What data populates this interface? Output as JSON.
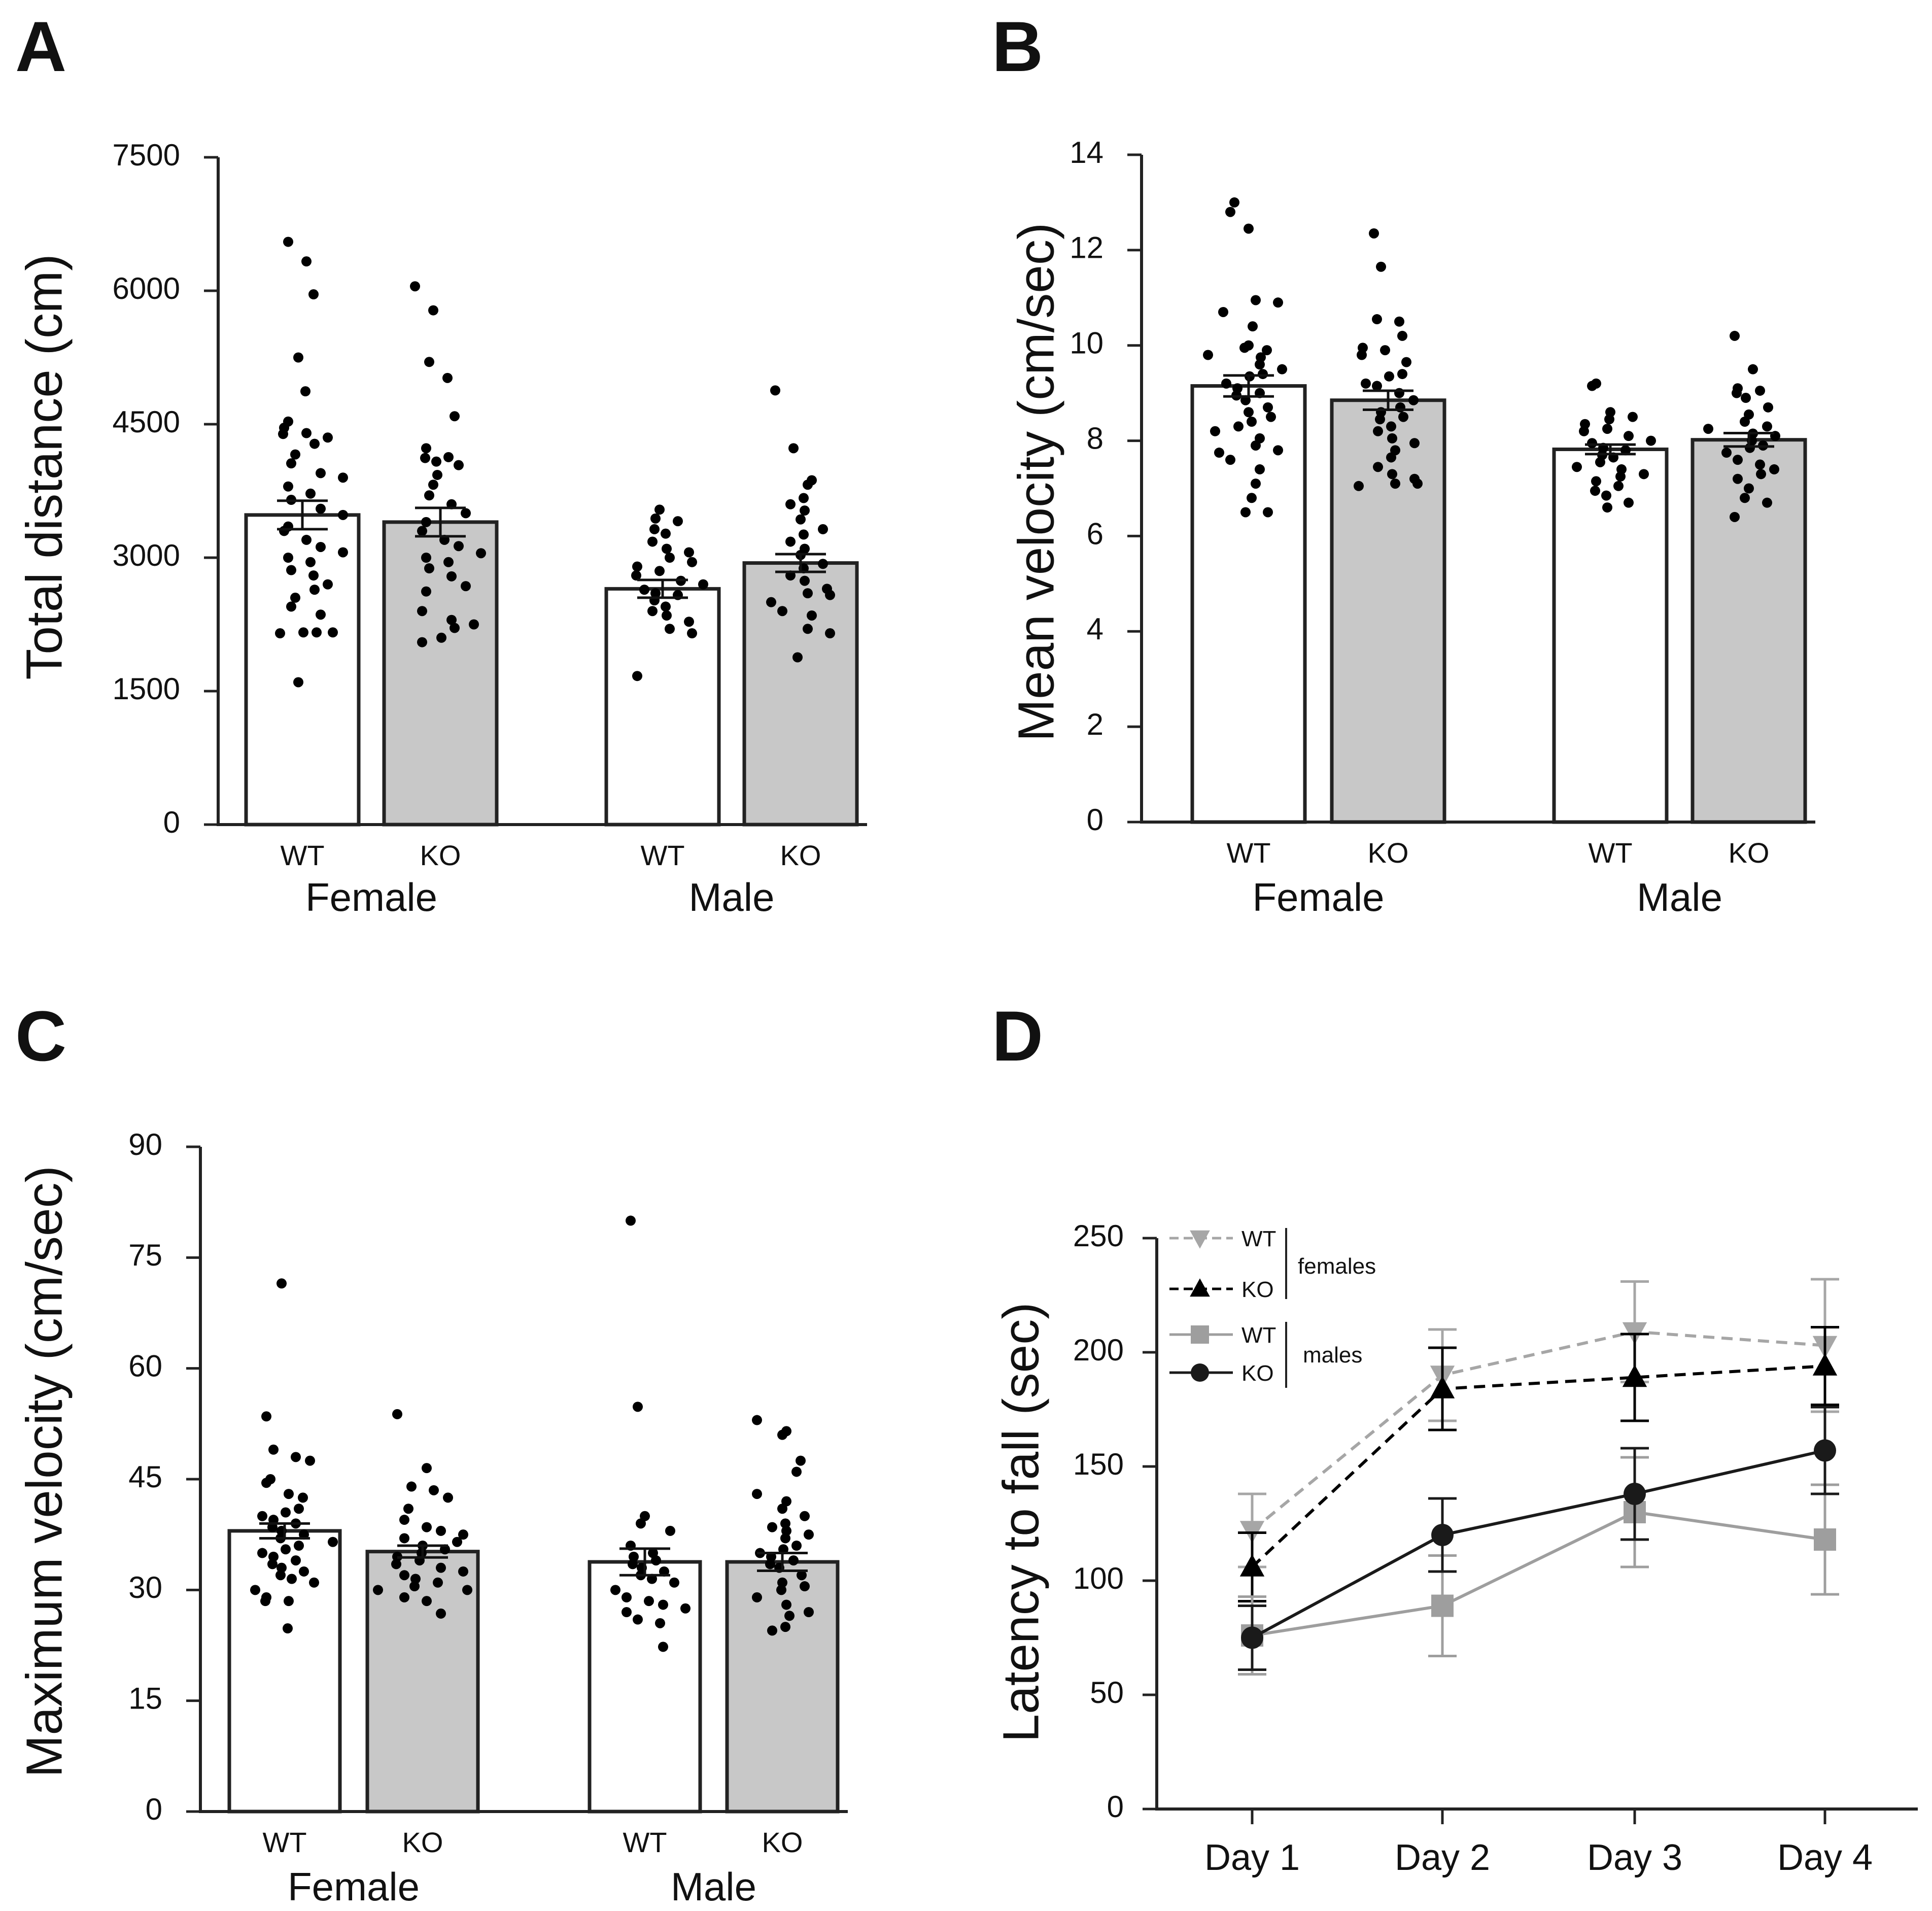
{
  "panels": {
    "a": "A",
    "b": "B",
    "c": "C",
    "d": "D"
  },
  "colors": {
    "wt_bar": "#ffffff",
    "ko_bar": "#c8c8c8",
    "dot": "#000000",
    "wt_female": "#a6a6a6",
    "ko_female": "#000000",
    "wt_male": "#9e9e9e",
    "ko_male": "#1a1a1a"
  },
  "chart_data": [
    {
      "panel": "A",
      "type": "bar",
      "ylabel": "Total distance (cm)",
      "ylim": [
        0,
        7500
      ],
      "yticks": [
        0,
        1500,
        3000,
        4500,
        6000,
        7500
      ],
      "groups": [
        "Female",
        "Male"
      ],
      "categories": [
        "WT",
        "KO",
        "WT",
        "KO"
      ],
      "bars": [
        {
          "group": "Female",
          "genotype": "WT",
          "mean": 3480,
          "sem": 160,
          "points": [
            6550,
            6330,
            5960,
            5250,
            4870,
            4530,
            4460,
            4400,
            4390,
            4350,
            4280,
            4160,
            4060,
            3950,
            3900,
            3800,
            3720,
            3650,
            3550,
            3480,
            3350,
            3300,
            3200,
            3120,
            3060,
            3000,
            2950,
            2860,
            2800,
            2700,
            2640,
            2550,
            2450,
            2360,
            2160,
            2160,
            2150,
            2160,
            1600
          ]
        },
        {
          "group": "Female",
          "genotype": "KO",
          "mean": 3400,
          "sem": 160,
          "points": [
            6050,
            5780,
            5200,
            5020,
            4590,
            4230,
            4130,
            4120,
            4080,
            4040,
            3930,
            3820,
            3700,
            3600,
            3500,
            3400,
            3300,
            3200,
            3130,
            3050,
            3000,
            2950,
            2880,
            2790,
            2680,
            2620,
            2400,
            2300,
            2250,
            2210,
            2100,
            2050
          ]
        },
        {
          "group": "Male",
          "genotype": "WT",
          "mean": 2650,
          "sem": 100,
          "points": [
            3540,
            3440,
            3410,
            3320,
            3270,
            3180,
            3100,
            3060,
            3000,
            2950,
            2900,
            2850,
            2800,
            2740,
            2700,
            2640,
            2600,
            2580,
            2520,
            2450,
            2400,
            2350,
            2280,
            2200,
            2150,
            1670
          ]
        },
        {
          "group": "Male",
          "genotype": "KO",
          "mean": 2940,
          "sem": 100,
          "points": [
            4880,
            4230,
            3870,
            3820,
            3670,
            3600,
            3530,
            3430,
            3320,
            3260,
            3180,
            3100,
            3030,
            2930,
            2880,
            2800,
            2740,
            2650,
            2600,
            2580,
            2500,
            2400,
            2350,
            2200,
            2150,
            1880
          ]
        }
      ]
    },
    {
      "panel": "B",
      "type": "bar",
      "ylabel": "Mean velocity (cm/sec)",
      "ylim": [
        0,
        14
      ],
      "yticks": [
        0,
        2,
        4,
        6,
        8,
        10,
        12,
        14
      ],
      "groups": [
        "Female",
        "Male"
      ],
      "categories": [
        "WT",
        "KO",
        "WT",
        "KO"
      ],
      "bars": [
        {
          "group": "Female",
          "genotype": "WT",
          "mean": 9.15,
          "sem": 0.22,
          "points": [
            13.0,
            12.8,
            12.45,
            10.95,
            10.9,
            10.7,
            10.4,
            10.0,
            9.95,
            9.9,
            9.8,
            9.75,
            9.6,
            9.5,
            9.4,
            9.35,
            9.2,
            9.1,
            9.0,
            8.95,
            8.85,
            8.7,
            8.6,
            8.5,
            8.4,
            8.3,
            8.2,
            8.05,
            7.9,
            7.8,
            7.75,
            7.6,
            7.4,
            7.1,
            6.8,
            6.5,
            6.5
          ]
        },
        {
          "group": "Female",
          "genotype": "KO",
          "mean": 8.85,
          "sem": 0.2,
          "points": [
            12.35,
            11.65,
            10.55,
            10.5,
            10.2,
            9.95,
            9.9,
            9.8,
            9.65,
            9.4,
            9.35,
            9.2,
            9.15,
            9.0,
            8.85,
            8.7,
            8.6,
            8.5,
            8.45,
            8.3,
            8.2,
            8.05,
            7.95,
            7.8,
            7.65,
            7.45,
            7.3,
            7.2,
            7.1,
            7.1,
            7.05
          ]
        },
        {
          "group": "Male",
          "genotype": "WT",
          "mean": 7.82,
          "sem": 0.1,
          "points": [
            9.2,
            9.15,
            8.6,
            8.5,
            8.45,
            8.35,
            8.25,
            8.2,
            8.1,
            8.0,
            7.95,
            7.85,
            7.8,
            7.7,
            7.65,
            7.55,
            7.45,
            7.4,
            7.3,
            7.25,
            7.15,
            7.05,
            6.95,
            6.85,
            6.7,
            6.6
          ]
        },
        {
          "group": "Male",
          "genotype": "KO",
          "mean": 8.02,
          "sem": 0.14,
          "points": [
            10.2,
            9.5,
            9.1,
            9.05,
            9.0,
            8.9,
            8.7,
            8.55,
            8.4,
            8.3,
            8.25,
            8.15,
            8.1,
            8.0,
            7.9,
            7.85,
            7.75,
            7.6,
            7.5,
            7.4,
            7.3,
            7.2,
            7.0,
            6.8,
            6.7,
            6.4
          ]
        }
      ]
    },
    {
      "panel": "C",
      "type": "bar",
      "ylabel": "Maximum velocity (cm/sec)",
      "ylim": [
        0,
        90
      ],
      "yticks": [
        0,
        15,
        30,
        45,
        60,
        75,
        90
      ],
      "groups": [
        "Female",
        "Male"
      ],
      "categories": [
        "WT",
        "KO",
        "WT",
        "KO"
      ],
      "bars": [
        {
          "group": "Female",
          "genotype": "WT",
          "mean": 38.0,
          "sem": 1.0,
          "points": [
            71.5,
            53.5,
            49.0,
            48.0,
            47.5,
            45.0,
            44.5,
            43.0,
            42.5,
            41.0,
            40.5,
            40.0,
            39.5,
            39.0,
            38.5,
            38.0,
            37.5,
            37.0,
            36.5,
            36.0,
            35.5,
            35.0,
            34.5,
            34.0,
            33.5,
            33.0,
            32.5,
            32.0,
            31.5,
            31.0,
            30.0,
            29.0,
            28.5,
            28.5,
            24.8
          ]
        },
        {
          "group": "Female",
          "genotype": "KO",
          "mean": 35.2,
          "sem": 0.8,
          "points": [
            53.8,
            46.5,
            44.0,
            43.5,
            42.5,
            41.0,
            39.5,
            38.5,
            38.0,
            37.5,
            37.0,
            36.5,
            36.0,
            35.5,
            35.0,
            34.5,
            34.0,
            33.5,
            33.0,
            32.5,
            32.0,
            31.5,
            31.0,
            30.5,
            30.0,
            30.0,
            29.0,
            28.5,
            26.8
          ]
        },
        {
          "group": "Male",
          "genotype": "WT",
          "mean": 33.8,
          "sem": 1.8,
          "points": [
            80.0,
            54.8,
            40.0,
            39.0,
            38.0,
            36.0,
            35.0,
            34.5,
            34.0,
            33.5,
            33.0,
            32.5,
            32.0,
            31.5,
            31.0,
            30.0,
            29.0,
            28.5,
            28.0,
            27.5,
            27.0,
            26.0,
            25.5,
            22.3
          ]
        },
        {
          "group": "Male",
          "genotype": "KO",
          "mean": 33.8,
          "sem": 1.2,
          "points": [
            53.0,
            51.5,
            51.0,
            47.5,
            46.0,
            43.0,
            42.0,
            41.0,
            40.0,
            39.0,
            38.5,
            38.0,
            37.5,
            37.0,
            36.0,
            35.5,
            35.0,
            34.5,
            34.0,
            33.5,
            33.0,
            32.0,
            31.0,
            30.5,
            30.0,
            29.0,
            28.0,
            27.0,
            26.5,
            25.0,
            24.5
          ]
        }
      ]
    },
    {
      "panel": "D",
      "type": "line",
      "ylabel": "Latency to fall (sec)",
      "ylim": [
        0,
        250
      ],
      "yticks": [
        0,
        50,
        100,
        150,
        200,
        250
      ],
      "x": [
        "Day 1",
        "Day 2",
        "Day 3",
        "Day 4"
      ],
      "legend": {
        "female_label": "females",
        "male_label": "males"
      },
      "series": [
        {
          "name": "WT",
          "sex": "females",
          "marker": "triangle-down",
          "dash": true,
          "values": [
            122,
            190,
            209,
            203
          ],
          "errors": [
            16,
            20,
            22,
            29
          ]
        },
        {
          "name": "KO",
          "sex": "females",
          "marker": "triangle-up",
          "dash": true,
          "values": [
            106,
            184,
            189,
            194
          ],
          "errors": [
            15,
            18,
            19,
            17
          ]
        },
        {
          "name": "WT",
          "sex": "males",
          "marker": "square",
          "dash": false,
          "values": [
            76,
            89,
            130,
            118
          ],
          "errors": [
            17,
            22,
            24,
            24
          ]
        },
        {
          "name": "KO",
          "sex": "males",
          "marker": "circle",
          "dash": false,
          "values": [
            75,
            120,
            138,
            157
          ],
          "errors": [
            14,
            16,
            20,
            19
          ]
        }
      ]
    }
  ]
}
